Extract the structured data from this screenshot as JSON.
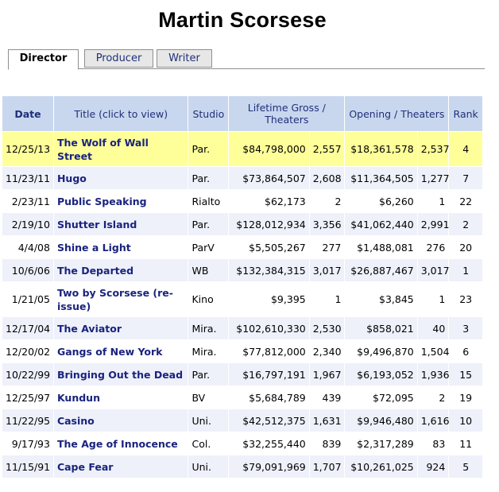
{
  "page_title": "Martin Scorsese",
  "tabs": [
    {
      "label": "Director",
      "active": true
    },
    {
      "label": "Producer",
      "active": false
    },
    {
      "label": "Writer",
      "active": false
    }
  ],
  "table": {
    "headers": {
      "date": "Date",
      "title": "Title (click to view)",
      "studio": "Studio",
      "gross": "Lifetime Gross / Theaters",
      "opening": "Opening / Theaters",
      "rank": "Rank"
    },
    "rows": [
      {
        "date": "12/25/13",
        "title": "The Wolf of Wall Street",
        "studio": "Par.",
        "gross": "$84,798,000",
        "gross_theaters": "2,557",
        "opening": "$18,361,578",
        "opening_theaters": "2,537",
        "rank": "4"
      },
      {
        "date": "11/23/11",
        "title": "Hugo",
        "studio": "Par.",
        "gross": "$73,864,507",
        "gross_theaters": "2,608",
        "opening": "$11,364,505",
        "opening_theaters": "1,277",
        "rank": "7"
      },
      {
        "date": "2/23/11",
        "title": "Public Speaking",
        "studio": "Rialto",
        "gross": "$62,173",
        "gross_theaters": "2",
        "opening": "$6,260",
        "opening_theaters": "1",
        "rank": "22"
      },
      {
        "date": "2/19/10",
        "title": "Shutter Island",
        "studio": "Par.",
        "gross": "$128,012,934",
        "gross_theaters": "3,356",
        "opening": "$41,062,440",
        "opening_theaters": "2,991",
        "rank": "2"
      },
      {
        "date": "4/4/08",
        "title": "Shine a Light",
        "studio": "ParV",
        "gross": "$5,505,267",
        "gross_theaters": "277",
        "opening": "$1,488,081",
        "opening_theaters": "276",
        "rank": "20"
      },
      {
        "date": "10/6/06",
        "title": "The Departed",
        "studio": "WB",
        "gross": "$132,384,315",
        "gross_theaters": "3,017",
        "opening": "$26,887,467",
        "opening_theaters": "3,017",
        "rank": "1"
      },
      {
        "date": "1/21/05",
        "title": "Two by Scorsese (re-issue)",
        "studio": "Kino",
        "gross": "$9,395",
        "gross_theaters": "1",
        "opening": "$3,845",
        "opening_theaters": "1",
        "rank": "23"
      },
      {
        "date": "12/17/04",
        "title": "The Aviator",
        "studio": "Mira.",
        "gross": "$102,610,330",
        "gross_theaters": "2,530",
        "opening": "$858,021",
        "opening_theaters": "40",
        "rank": "3"
      },
      {
        "date": "12/20/02",
        "title": "Gangs of New York",
        "studio": "Mira.",
        "gross": "$77,812,000",
        "gross_theaters": "2,340",
        "opening": "$9,496,870",
        "opening_theaters": "1,504",
        "rank": "6"
      },
      {
        "date": "10/22/99",
        "title": "Bringing Out the Dead",
        "studio": "Par.",
        "gross": "$16,797,191",
        "gross_theaters": "1,967",
        "opening": "$6,193,052",
        "opening_theaters": "1,936",
        "rank": "15"
      },
      {
        "date": "12/25/97",
        "title": "Kundun",
        "studio": "BV",
        "gross": "$5,684,789",
        "gross_theaters": "439",
        "opening": "$72,095",
        "opening_theaters": "2",
        "rank": "19"
      },
      {
        "date": "11/22/95",
        "title": "Casino",
        "studio": "Uni.",
        "gross": "$42,512,375",
        "gross_theaters": "1,631",
        "opening": "$9,946,480",
        "opening_theaters": "1,616",
        "rank": "10"
      },
      {
        "date": "9/17/93",
        "title": "The Age of Innocence",
        "studio": "Col.",
        "gross": "$32,255,440",
        "gross_theaters": "839",
        "opening": "$2,317,289",
        "opening_theaters": "83",
        "rank": "11"
      },
      {
        "date": "11/15/91",
        "title": "Cape Fear",
        "studio": "Uni.",
        "gross": "$79,091,969",
        "gross_theaters": "1,707",
        "opening": "$10,261,025",
        "opening_theaters": "924",
        "rank": "5"
      }
    ]
  },
  "colors": {
    "header_bg": "#c9d7ee",
    "highlight_row": "#ffff9a",
    "alt_row": "#eef1fa",
    "link_text": "#1a237e"
  }
}
